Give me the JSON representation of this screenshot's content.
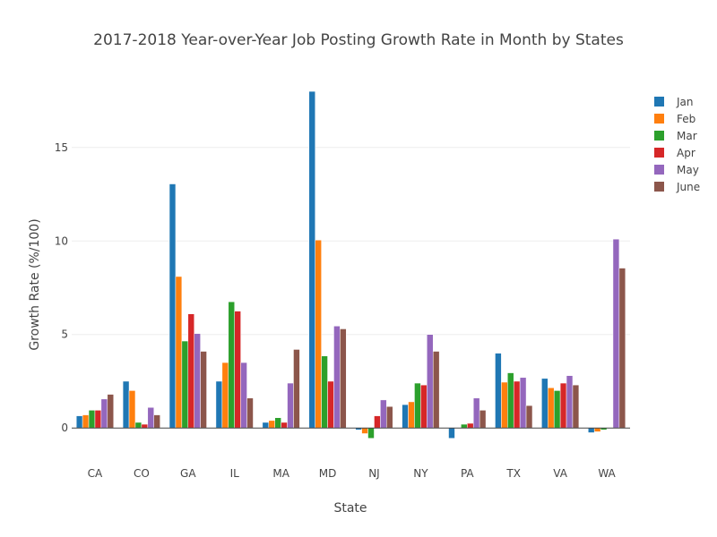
{
  "chart_data": {
    "type": "bar",
    "title": "2017-2018 Year-over-Year Job Posting Growth Rate in Month by States",
    "xlabel": "State",
    "ylabel": "Growth Rate (%/100)",
    "ylim": [
      -2,
      18.1
    ],
    "yticks": [
      0,
      5,
      10,
      15
    ],
    "grid": true,
    "legend_position": "top-right",
    "categories": [
      "CA",
      "CO",
      "GA",
      "IL",
      "MA",
      "MD",
      "NJ",
      "NY",
      "PA",
      "TX",
      "VA",
      "WA"
    ],
    "series": [
      {
        "name": "Jan",
        "color": "#1f77b4",
        "values": [
          0.65,
          2.5,
          13.05,
          2.5,
          0.3,
          18.0,
          -0.1,
          1.25,
          -0.55,
          4.0,
          2.65,
          -0.25
        ]
      },
      {
        "name": "Feb",
        "color": "#ff7f0e",
        "values": [
          0.7,
          2.0,
          8.1,
          3.5,
          0.4,
          10.05,
          -0.3,
          1.4,
          0.0,
          2.45,
          2.15,
          -0.2
        ]
      },
      {
        "name": "Mar",
        "color": "#2ca02c",
        "values": [
          0.95,
          0.3,
          4.65,
          6.75,
          0.55,
          3.85,
          -0.55,
          2.4,
          0.2,
          2.95,
          2.0,
          -0.1
        ]
      },
      {
        "name": "Apr",
        "color": "#d62728",
        "values": [
          0.95,
          0.2,
          6.1,
          6.25,
          0.3,
          2.5,
          0.65,
          2.3,
          0.25,
          2.5,
          2.4,
          0.0
        ]
      },
      {
        "name": "May",
        "color": "#9467bd",
        "values": [
          1.55,
          1.1,
          5.05,
          3.5,
          2.4,
          5.45,
          1.5,
          5.0,
          1.6,
          2.7,
          2.8,
          10.1
        ]
      },
      {
        "name": "June",
        "color": "#8c564b",
        "values": [
          1.8,
          0.7,
          4.1,
          1.6,
          4.2,
          5.3,
          1.15,
          4.1,
          0.95,
          1.2,
          2.3,
          8.55
        ]
      }
    ]
  }
}
